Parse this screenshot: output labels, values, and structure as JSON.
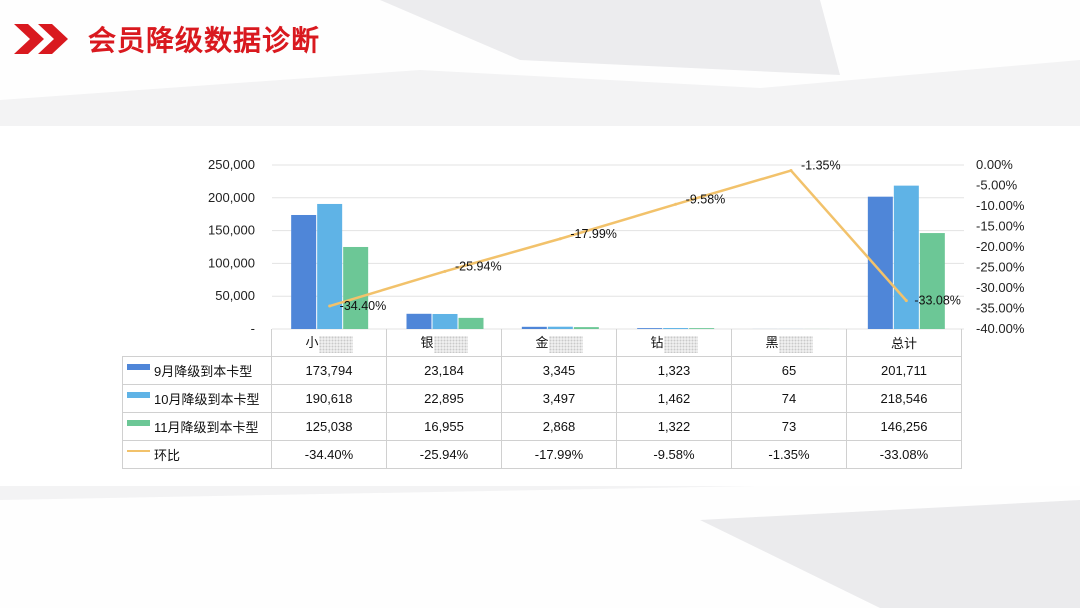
{
  "header": {
    "title": "会员降级数据诊断"
  },
  "colors": {
    "title": "#d9191f",
    "sep": "#4f86d8",
    "oct": "#5fb3e6",
    "nov": "#6cc796",
    "ratio": "#f2c26b"
  },
  "chart_data": {
    "type": "bar",
    "categories": [
      "小",
      "银",
      "金",
      "钻",
      "黑",
      "总计"
    ],
    "series": [
      {
        "name": "9月降级到本卡型",
        "type": "bar",
        "axis": "left",
        "values": [
          173794,
          23184,
          3345,
          1323,
          65,
          201711
        ],
        "display": [
          "173,794",
          "23,184",
          "3,345",
          "1,323",
          "65",
          "201,711"
        ]
      },
      {
        "name": "10月降级到本卡型",
        "type": "bar",
        "axis": "left",
        "values": [
          190618,
          22895,
          3497,
          1462,
          74,
          218546
        ],
        "display": [
          "190,618",
          "22,895",
          "3,497",
          "1,462",
          "74",
          "218,546"
        ]
      },
      {
        "name": "11月降级到本卡型",
        "type": "bar",
        "axis": "left",
        "values": [
          125038,
          16955,
          2868,
          1322,
          73,
          146256
        ],
        "display": [
          "125,038",
          "16,955",
          "2,868",
          "1,322",
          "73",
          "146,256"
        ]
      },
      {
        "name": "环比",
        "type": "line",
        "axis": "right",
        "values": [
          -34.4,
          -25.94,
          -17.99,
          -9.58,
          -1.35,
          -33.08
        ],
        "display": [
          "-34.40%",
          "-25.94%",
          "-17.99%",
          "-9.58%",
          "-1.35%",
          "-33.08%"
        ]
      }
    ],
    "y_left": {
      "range": [
        0,
        250000
      ],
      "ticks": [
        "250,000",
        "200,000",
        "150,000",
        "100,000",
        "50,000",
        "-"
      ]
    },
    "y_right": {
      "range": [
        -40,
        0
      ],
      "ticks": [
        "0.00%",
        "-5.00%",
        "-10.00%",
        "-15.00%",
        "-20.00%",
        "-25.00%",
        "-30.00%",
        "-35.00%",
        "-40.00%"
      ]
    },
    "grid": true,
    "legend": "data-table"
  }
}
